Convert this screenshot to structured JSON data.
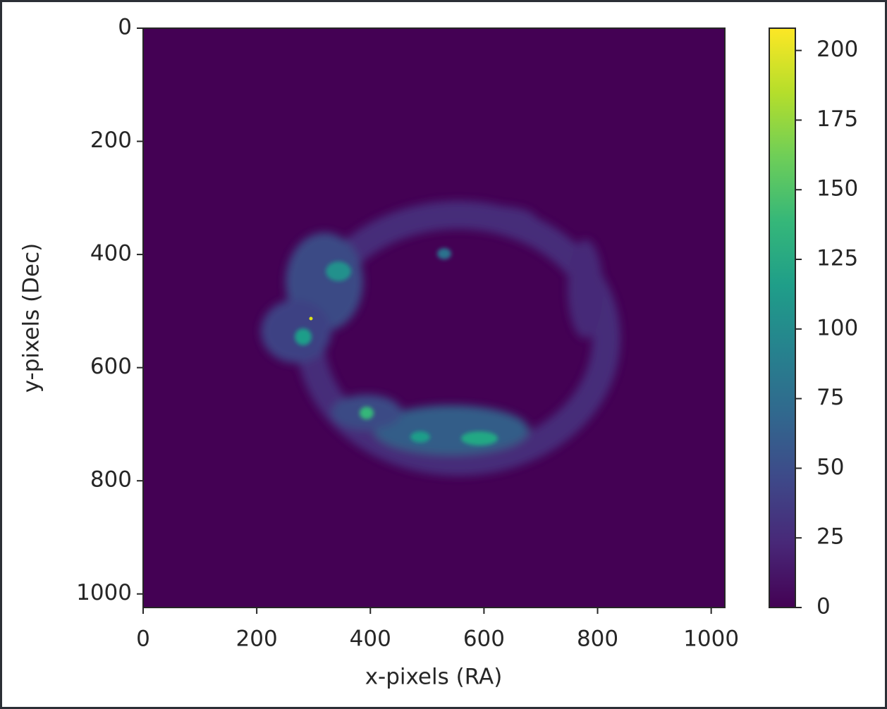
{
  "chart_data": {
    "type": "image",
    "x_label": "x-pixels (RA)",
    "y_label": "y-pixels (Dec)",
    "xlim": [
      0,
      1024
    ],
    "ylim": [
      1024,
      0
    ],
    "xticks": [
      0,
      200,
      400,
      600,
      800,
      1000
    ],
    "yticks": [
      0,
      200,
      400,
      600,
      800,
      1000
    ],
    "colormap": "viridis",
    "colorbar": {
      "lim": [
        0,
        208
      ],
      "ticks": [
        0,
        25,
        50,
        75,
        100,
        125,
        150,
        175,
        200
      ]
    }
  }
}
